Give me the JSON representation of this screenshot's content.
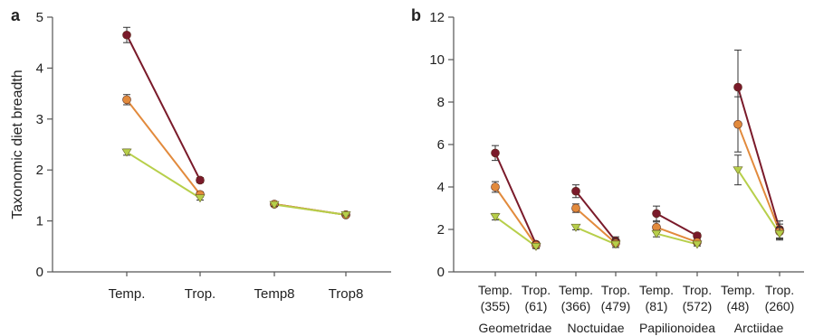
{
  "figure": {
    "panel_a_letter": "a",
    "panel_b_letter": "b"
  },
  "colors": {
    "dark_red": "#7a1a2a",
    "orange": "#e28a3c",
    "light_green": "#b7cf4a",
    "error_bar": "#333333"
  },
  "chart_data": [
    {
      "panel": "a",
      "type": "line",
      "title": "",
      "xlabel": "",
      "ylabel": "Taxonomic diet breadth",
      "ylim": [
        0,
        5
      ],
      "yticks": [
        0,
        1,
        2,
        3,
        4,
        5
      ],
      "grid": false,
      "legend": "none",
      "categories": [
        "Temp.",
        "Trop.",
        "Temp8",
        "Trop8"
      ],
      "groups": [
        {
          "x": [
            "Temp.",
            "Trop."
          ],
          "series": [
            {
              "color": "dark_red",
              "values": [
                4.65,
                1.8
              ],
              "errors": [
                0.15,
                0.05
              ]
            },
            {
              "color": "orange",
              "values": [
                3.38,
                1.52
              ],
              "errors": [
                0.1,
                0.05
              ]
            },
            {
              "color": "light_green",
              "values": [
                2.35,
                1.45
              ],
              "errors": [
                0.06,
                0.04
              ]
            }
          ]
        },
        {
          "x": [
            "Temp8",
            "Trop8"
          ],
          "series": [
            {
              "color": "dark_red",
              "values": [
                1.33,
                1.12
              ],
              "errors": [
                0.03,
                0.02
              ]
            },
            {
              "color": "orange",
              "values": [
                1.33,
                1.12
              ],
              "errors": [
                0.03,
                0.02
              ]
            },
            {
              "color": "light_green",
              "values": [
                1.32,
                1.12
              ],
              "errors": [
                0.03,
                0.02
              ]
            }
          ]
        }
      ]
    },
    {
      "panel": "b",
      "type": "line",
      "title": "",
      "xlabel": "",
      "ylabel": "",
      "ylim": [
        0,
        12
      ],
      "yticks": [
        0,
        2,
        4,
        6,
        8,
        10,
        12
      ],
      "grid": false,
      "legend": "none",
      "categories": [
        {
          "label": "Temp.",
          "n": "(355)"
        },
        {
          "label": "Trop.",
          "n": "(61)"
        },
        {
          "label": "Temp.",
          "n": "(366)"
        },
        {
          "label": "Trop.",
          "n": "(479)"
        },
        {
          "label": "Temp.",
          "n": "(81)"
        },
        {
          "label": "Trop.",
          "n": "(572)"
        },
        {
          "label": "Temp.",
          "n": "(48)"
        },
        {
          "label": "Trop.",
          "n": "(260)"
        }
      ],
      "family_labels": [
        "Geometridae",
        "Noctuidae",
        "Papilionoidea",
        "Arctiidae"
      ],
      "groups": [
        {
          "family": "Geometridae",
          "series": [
            {
              "color": "dark_red",
              "values": [
                5.6,
                1.3
              ],
              "errors": [
                0.35,
                0.1
              ]
            },
            {
              "color": "orange",
              "values": [
                4.0,
                1.25
              ],
              "errors": [
                0.25,
                0.1
              ]
            },
            {
              "color": "light_green",
              "values": [
                2.6,
                1.2
              ],
              "errors": [
                0.15,
                0.1
              ]
            }
          ]
        },
        {
          "family": "Noctuidae",
          "series": [
            {
              "color": "dark_red",
              "values": [
                3.8,
                1.45
              ],
              "errors": [
                0.3,
                0.2
              ]
            },
            {
              "color": "orange",
              "values": [
                3.0,
                1.35
              ],
              "errors": [
                0.2,
                0.2
              ]
            },
            {
              "color": "light_green",
              "values": [
                2.1,
                1.3
              ],
              "errors": [
                0.12,
                0.15
              ]
            }
          ]
        },
        {
          "family": "Papilionoidea",
          "series": [
            {
              "color": "dark_red",
              "values": [
                2.75,
                1.7
              ],
              "errors": [
                0.35,
                0.12
              ]
            },
            {
              "color": "orange",
              "values": [
                2.1,
                1.4
              ],
              "errors": [
                0.25,
                0.1
              ]
            },
            {
              "color": "light_green",
              "values": [
                1.8,
                1.3
              ],
              "errors": [
                0.15,
                0.08
              ]
            }
          ]
        },
        {
          "family": "Arctiidae",
          "series": [
            {
              "color": "dark_red",
              "values": [
                8.7,
                2.0
              ],
              "errors": [
                1.75,
                0.4
              ]
            },
            {
              "color": "orange",
              "values": [
                6.95,
                1.9
              ],
              "errors": [
                1.3,
                0.35
              ]
            },
            {
              "color": "light_green",
              "values": [
                4.8,
                1.8
              ],
              "errors": [
                0.7,
                0.3
              ]
            }
          ]
        }
      ]
    }
  ]
}
